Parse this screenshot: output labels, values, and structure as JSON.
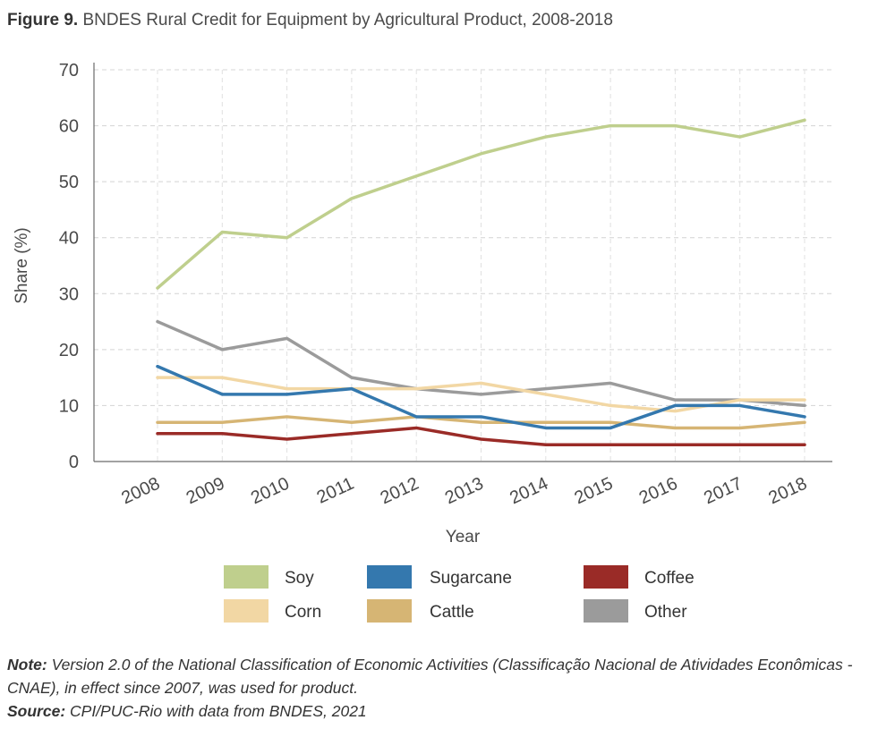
{
  "figure": {
    "label": "Figure 9.",
    "title": "BNDES Rural Credit for Equipment by Agricultural Product, 2008-2018"
  },
  "chart_data": {
    "type": "line",
    "title": "BNDES Rural Credit for Equipment by Agricultural Product, 2008-2018",
    "xlabel": "Year",
    "ylabel": "Share (%)",
    "ylim": [
      0,
      70
    ],
    "yticks": [
      0,
      10,
      20,
      30,
      40,
      50,
      60,
      70
    ],
    "grid": "horizontal dashed",
    "legend_position": "bottom",
    "categories": [
      "2008",
      "2009",
      "2010",
      "2011",
      "2012",
      "2013",
      "2014",
      "2015",
      "2016",
      "2017",
      "2018"
    ],
    "series": [
      {
        "name": "Soy",
        "color": "#bfcf8d",
        "values": [
          31,
          41,
          40,
          47,
          51,
          55,
          58,
          60,
          60,
          58,
          61
        ]
      },
      {
        "name": "Corn",
        "color": "#f2d7a4",
        "values": [
          15,
          15,
          13,
          13,
          13,
          14,
          12,
          10,
          9,
          11,
          11
        ]
      },
      {
        "name": "Sugarcane",
        "color": "#3478ae",
        "values": [
          17,
          12,
          12,
          13,
          8,
          8,
          6,
          6,
          10,
          10,
          8
        ]
      },
      {
        "name": "Cattle",
        "color": "#d6b574",
        "values": [
          7,
          7,
          8,
          7,
          8,
          7,
          7,
          7,
          6,
          6,
          7
        ]
      },
      {
        "name": "Coffee",
        "color": "#9a2b27",
        "values": [
          5,
          5,
          4,
          5,
          6,
          4,
          3,
          3,
          3,
          3,
          3
        ]
      },
      {
        "name": "Other",
        "color": "#9b9b9b",
        "values": [
          25,
          20,
          22,
          15,
          13,
          12,
          13,
          14,
          11,
          11,
          10
        ]
      }
    ],
    "legend_order": [
      "Soy",
      "Sugarcane",
      "Coffee",
      "Corn",
      "Cattle",
      "Other"
    ]
  },
  "footer": {
    "note_label": "Note:",
    "note_text": " Version 2.0 of the National Classification of Economic Activities (Classificação Nacional de Atividades Econômicas - CNAE), in effect since 2007, was used for product.",
    "source_label": "Source:",
    "source_text": " CPI/PUC-Rio with data from BNDES, 2021"
  }
}
